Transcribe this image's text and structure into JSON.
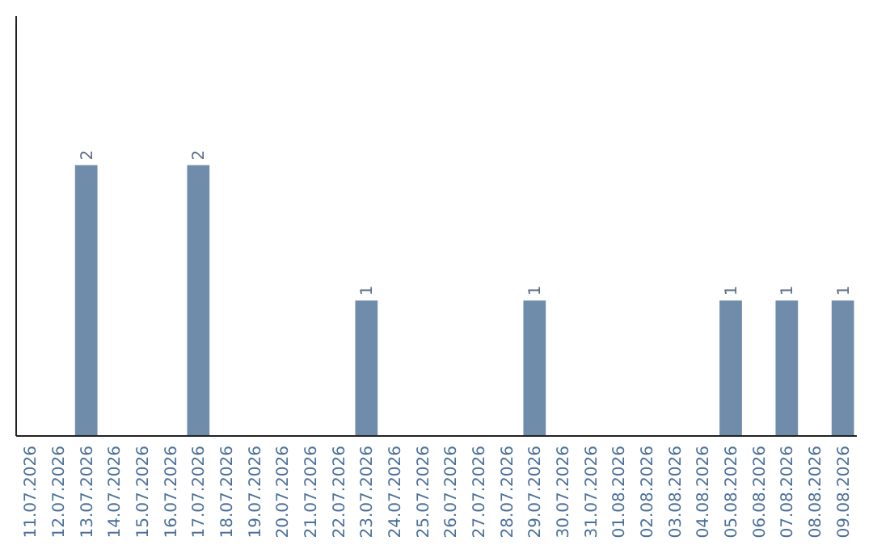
{
  "chart_data": {
    "type": "bar",
    "categories": [
      "11.07.2026",
      "12.07.2026",
      "13.07.2026",
      "14.07.2026",
      "15.07.2026",
      "16.07.2026",
      "17.07.2026",
      "18.07.2026",
      "19.07.2026",
      "20.07.2026",
      "21.07.2026",
      "22.07.2026",
      "23.07.2026",
      "24.07.2026",
      "25.07.2026",
      "26.07.2026",
      "27.07.2026",
      "28.07.2026",
      "29.07.2026",
      "30.07.2026",
      "31.07.2026",
      "01.08.2026",
      "02.08.2026",
      "03.08.2026",
      "04.08.2026",
      "05.08.2026",
      "06.08.2026",
      "07.08.2026",
      "08.08.2026",
      "09.08.2026"
    ],
    "values": [
      0,
      0,
      2,
      0,
      0,
      0,
      2,
      0,
      0,
      0,
      0,
      0,
      1,
      0,
      0,
      0,
      0,
      0,
      1,
      0,
      0,
      0,
      0,
      0,
      0,
      1,
      0,
      1,
      0,
      1
    ],
    "value_labels": [
      null,
      null,
      "2",
      null,
      null,
      null,
      "2",
      null,
      null,
      null,
      null,
      null,
      "1",
      null,
      null,
      null,
      null,
      null,
      "1",
      null,
      null,
      null,
      null,
      null,
      null,
      "1",
      null,
      "1",
      null,
      "1"
    ],
    "color": "#6f8dab",
    "ylim": [
      0,
      3.1
    ],
    "tick_labels": "x"
  }
}
